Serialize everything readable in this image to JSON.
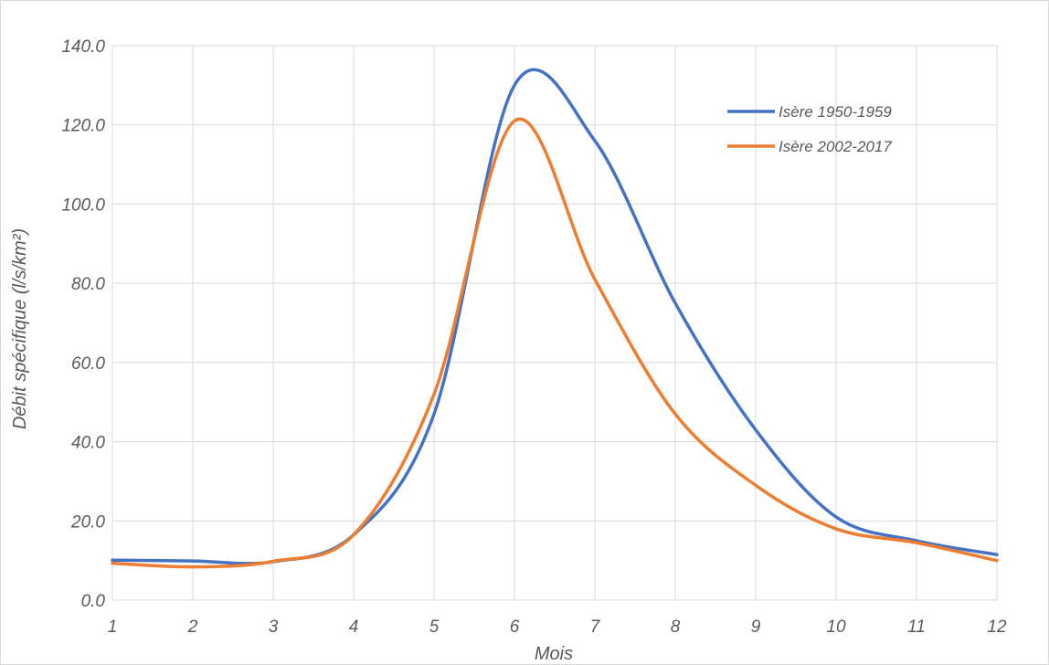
{
  "chart_data": {
    "type": "line",
    "xlabel": "Mois",
    "ylabel": "Débit spécifique (l/s/km²)",
    "x": [
      1,
      2,
      3,
      4,
      5,
      6,
      7,
      8,
      9,
      10,
      11,
      12
    ],
    "xlim": [
      1,
      12
    ],
    "ylim": [
      0,
      140
    ],
    "yticks": [
      "0.0",
      "20.0",
      "40.0",
      "60.0",
      "80.0",
      "100.0",
      "120.0",
      "140.0"
    ],
    "grid": true,
    "legend_position": "top-right",
    "series": [
      {
        "name": "Isère 1950-1959",
        "color": "#4472C4",
        "values": [
          10.1,
          9.9,
          9.7,
          16.5,
          47.0,
          130.0,
          116.0,
          75.0,
          43.0,
          21.0,
          15.0,
          11.5
        ]
      },
      {
        "name": "Isère 2002-2017",
        "color": "#ED7D31",
        "values": [
          9.3,
          8.4,
          9.8,
          16.5,
          52.0,
          121.0,
          81.0,
          47.0,
          29.0,
          18.0,
          14.5,
          10.0
        ]
      }
    ]
  }
}
